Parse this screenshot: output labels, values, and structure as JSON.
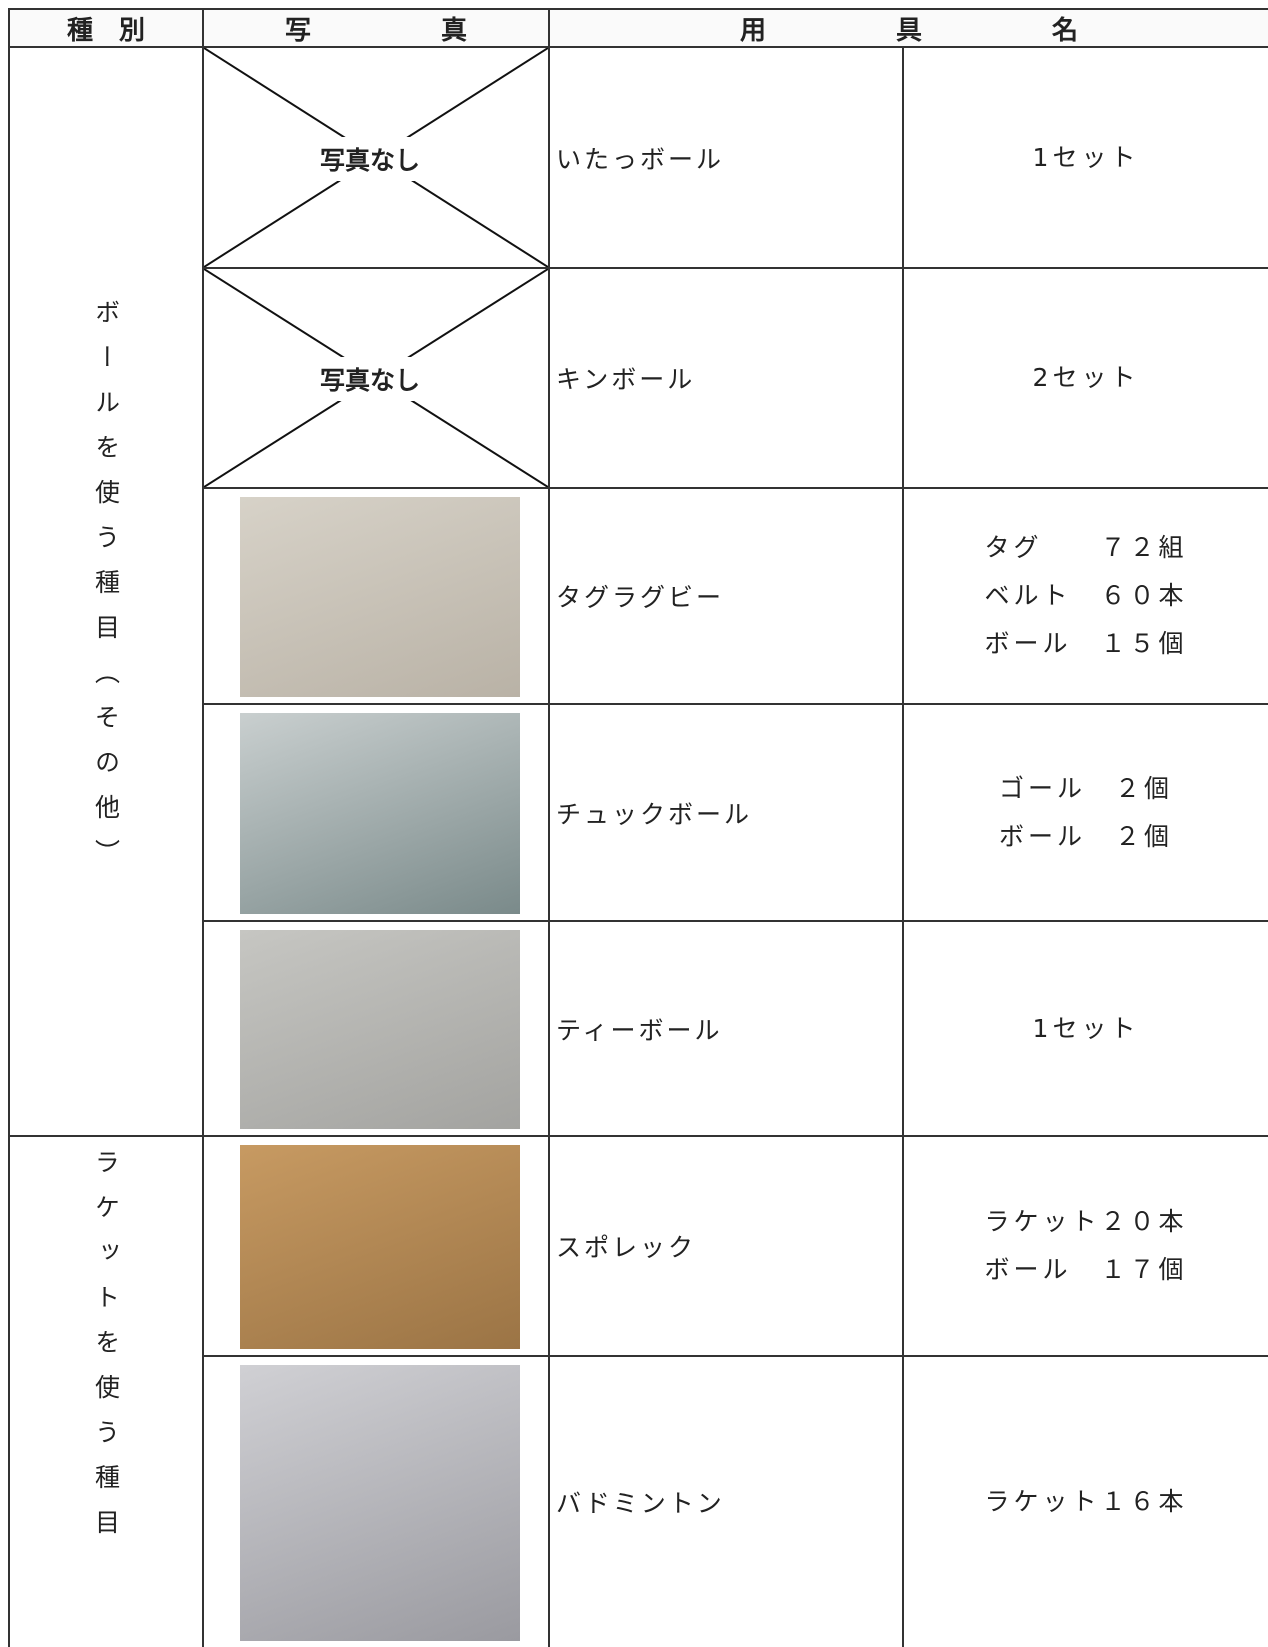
{
  "header": [
    "種　別",
    "写　　　　　真",
    "用　　　　　具　　　　　名"
  ],
  "sections": [
    {
      "category": "ボールを使う種目（その他）",
      "rows": [
        {
          "photo": "写真なし",
          "name": "いたっボール",
          "quantity": [
            "1セット"
          ]
        },
        {
          "photo": "写真なし",
          "name": "キンボール",
          "quantity": [
            "2セット"
          ]
        },
        {
          "name": "タグラグビー",
          "quantity": [
            "タグ　　７２組",
            "ベルト　６０本",
            "ボール　１５個"
          ]
        },
        {
          "name": "チュックボール",
          "quantity": [
            "ゴール　２個",
            "ボール　２個"
          ]
        },
        {
          "name": "ティーボール",
          "quantity": [
            "1セット"
          ]
        }
      ]
    },
    {
      "category": "ラケットを使う種目",
      "rows": [
        {
          "name": "スポレック",
          "quantity": [
            "ラケット２０本",
            "ボール　１７個"
          ]
        },
        {
          "name": "バドミントン",
          "quantity": [
            "ラケット１６本"
          ]
        }
      ]
    }
  ]
}
